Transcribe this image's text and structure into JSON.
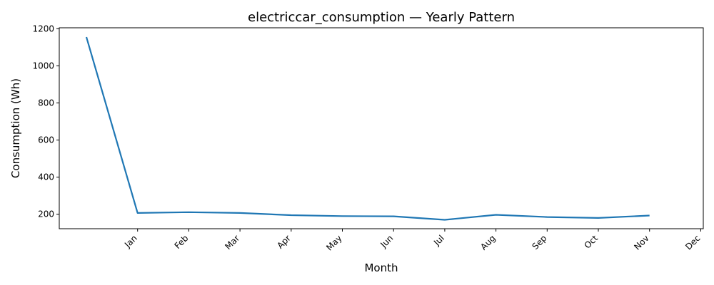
{
  "chart_data": {
    "type": "line",
    "title": "electriccar_consumption — Yearly Pattern",
    "xlabel": "Month",
    "ylabel": "Consumption (Wh)",
    "x_tick_labels": [
      "Jan",
      "Feb",
      "Mar",
      "Apr",
      "May",
      "Jun",
      "Jul",
      "Aug",
      "Sep",
      "Oct",
      "Nov",
      "Dec"
    ],
    "y_ticks": [
      200,
      400,
      600,
      800,
      1000,
      1200
    ],
    "ylim": [
      122,
      1205
    ],
    "xlim": [
      -0.53,
      12.05
    ],
    "grid": false,
    "legend": "none",
    "series": [
      {
        "color": "#1f77b4",
        "x": [
          0,
          1,
          2,
          3,
          4,
          5,
          6,
          7,
          8,
          9,
          10,
          11
        ],
        "values": [
          1155,
          207,
          211,
          207,
          195,
          190,
          189,
          170,
          197,
          185,
          180,
          193
        ]
      }
    ]
  }
}
